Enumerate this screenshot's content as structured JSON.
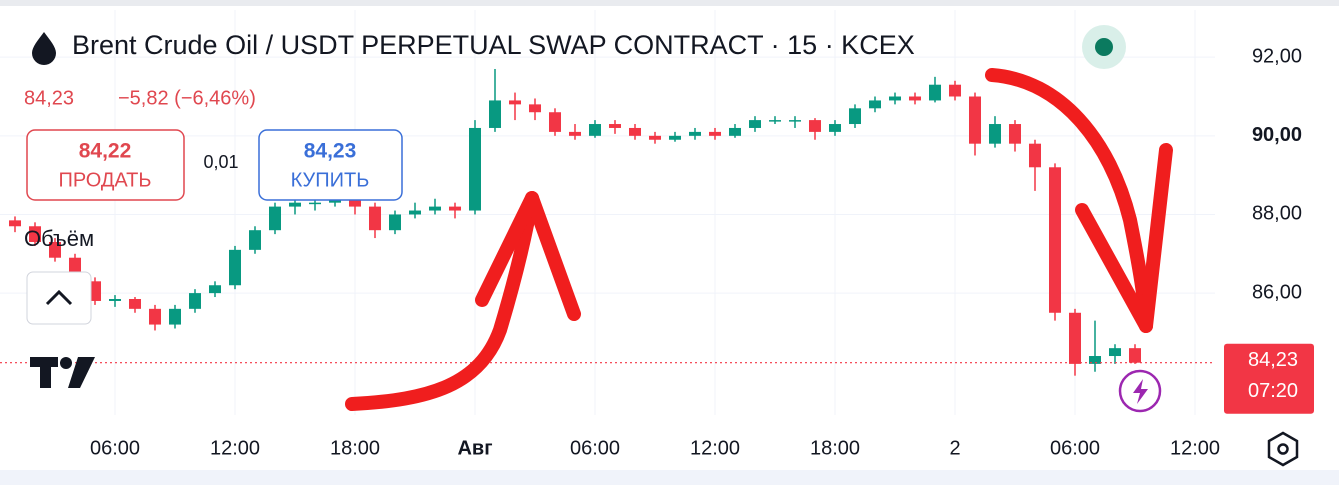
{
  "header": {
    "title": "Brent Crude Oil / USDT PERPETUAL SWAP CONTRACT · 15 · KCEX",
    "last": "84,23",
    "change": "−5,82 (−6,46%)",
    "sell_price": "84,22",
    "sell_label": "ПРОДАТЬ",
    "spread": "0,01",
    "buy_price": "84,23",
    "buy_label": "КУПИТЬ",
    "volume_label": "Объём"
  },
  "chart_data": {
    "type": "candlestick",
    "categories": [
      null,
      null,
      null,
      null,
      null,
      "06:00",
      null,
      null,
      null,
      null,
      null,
      "12:00",
      null,
      null,
      null,
      null,
      null,
      "18:00",
      null,
      null,
      null,
      null,
      null,
      "Авг",
      null,
      null,
      null,
      null,
      null,
      "06:00",
      null,
      null,
      null,
      null,
      null,
      "12:00",
      null,
      null,
      null,
      null,
      null,
      "18:00",
      null,
      null,
      null,
      null,
      null,
      "2",
      null,
      null,
      null,
      null,
      null,
      "06:00",
      null,
      null,
      null,
      null,
      null,
      "12:00",
      null
    ],
    "open": [
      87.85,
      87.7,
      87.3,
      86.9,
      86.3,
      85.8,
      85.85,
      85.6,
      85.2,
      85.6,
      86.0,
      86.2,
      87.1,
      87.6,
      88.2,
      88.3,
      88.3,
      88.4,
      88.2,
      87.6,
      88.0,
      88.1,
      88.2,
      88.1,
      90.2,
      90.9,
      90.8,
      90.6,
      90.1,
      90.0,
      90.3,
      90.2,
      90.0,
      89.9,
      90.0,
      90.1,
      90.0,
      90.2,
      90.4,
      90.4,
      90.4,
      90.1,
      90.3,
      90.7,
      90.9,
      91.0,
      90.9,
      91.3,
      91.0,
      89.8,
      90.3,
      89.8,
      89.2,
      85.5,
      84.2,
      84.4,
      84.6,
      null,
      null,
      null,
      null
    ],
    "high": [
      87.95,
      87.8,
      87.4,
      87.0,
      86.4,
      85.95,
      85.9,
      85.7,
      85.7,
      86.1,
      86.3,
      87.2,
      87.7,
      88.3,
      88.4,
      88.5,
      88.6,
      88.5,
      88.3,
      88.1,
      88.3,
      88.4,
      88.3,
      90.4,
      91.7,
      91.1,
      90.95,
      90.7,
      90.3,
      90.4,
      90.4,
      90.3,
      90.1,
      90.1,
      90.2,
      90.2,
      90.3,
      90.5,
      90.5,
      90.5,
      90.45,
      90.4,
      90.8,
      91.0,
      91.1,
      91.1,
      91.5,
      91.4,
      91.1,
      90.5,
      90.4,
      89.9,
      89.3,
      85.6,
      85.3,
      84.7,
      84.7,
      null,
      null,
      null,
      null
    ],
    "low": [
      87.55,
      87.2,
      86.8,
      86.2,
      85.7,
      85.65,
      85.5,
      85.05,
      85.1,
      85.5,
      85.9,
      86.1,
      87.0,
      87.5,
      88.0,
      88.1,
      88.2,
      88.0,
      87.4,
      87.5,
      87.9,
      88.0,
      87.9,
      88.0,
      90.1,
      90.4,
      90.4,
      90.0,
      89.9,
      89.95,
      90.05,
      89.9,
      89.8,
      89.85,
      89.9,
      89.9,
      89.95,
      90.1,
      90.3,
      90.2,
      89.9,
      90.0,
      90.2,
      90.6,
      90.8,
      90.8,
      90.85,
      90.9,
      89.5,
      89.7,
      89.6,
      88.6,
      85.3,
      83.9,
      84.0,
      84.2,
      84.2,
      null,
      null,
      null,
      null
    ],
    "close": [
      87.7,
      87.3,
      86.9,
      86.3,
      85.8,
      85.85,
      85.6,
      85.2,
      85.6,
      86.0,
      86.2,
      87.1,
      87.6,
      88.2,
      88.3,
      88.3,
      88.4,
      88.2,
      87.6,
      88.0,
      88.1,
      88.2,
      88.1,
      90.2,
      90.9,
      90.8,
      90.6,
      90.1,
      90.0,
      90.3,
      90.2,
      90.0,
      89.9,
      90.0,
      90.1,
      90.0,
      90.2,
      90.4,
      90.4,
      90.4,
      90.1,
      90.3,
      90.7,
      90.9,
      91.0,
      90.9,
      91.3,
      91.0,
      89.8,
      90.3,
      89.8,
      89.2,
      85.5,
      84.2,
      84.4,
      84.6,
      84.23,
      null,
      null,
      null,
      null
    ],
    "up_color": "#089981",
    "down_color": "#f23645",
    "ylim": [
      82.9,
      93.2
    ],
    "yticks": [
      {
        "value": 92,
        "label": "92,00"
      },
      {
        "value": 90,
        "label": "90,00"
      },
      {
        "value": 88,
        "label": "88,00"
      },
      {
        "value": 86,
        "label": "86,00"
      }
    ],
    "grid": true,
    "last_price": {
      "value": 84.23,
      "label": "84,23"
    },
    "countdown": "07:20"
  }
}
